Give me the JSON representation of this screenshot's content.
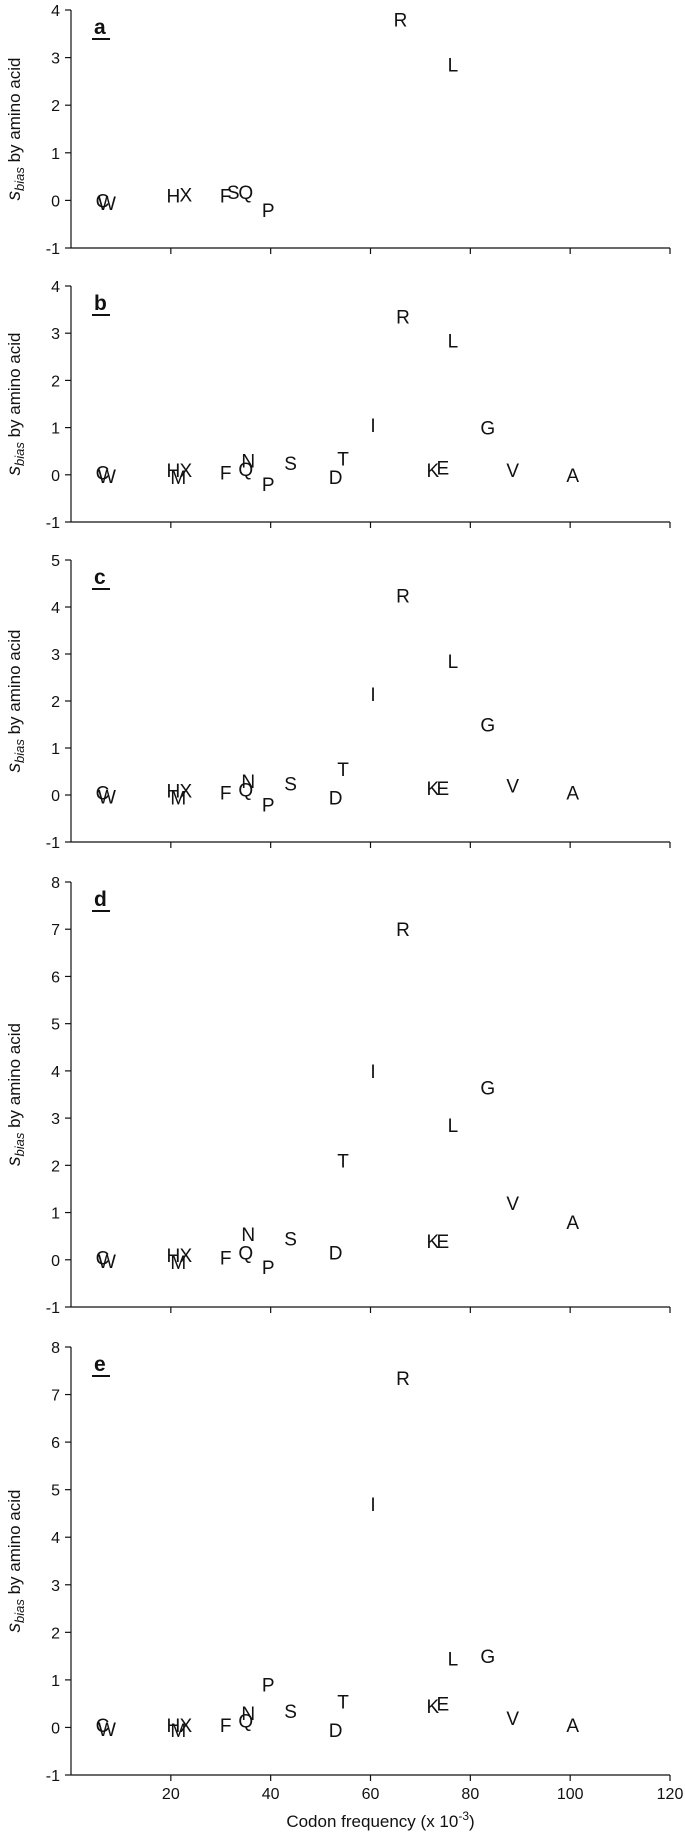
{
  "chart_data": [
    {
      "type": "scatter",
      "panel_label": "a",
      "ylabel_main": "s",
      "ylabel_sub": "bias",
      "ylabel_rest": " by amino acid",
      "xlim": [
        0,
        120
      ],
      "ylim": [
        -1,
        4
      ],
      "yticks": [
        -1,
        0,
        1,
        2,
        3,
        4
      ],
      "xticks": [
        20,
        40,
        60,
        80,
        100,
        120
      ],
      "points": [
        {
          "label": "R",
          "x": 66,
          "y": 3.8
        },
        {
          "label": "L",
          "x": 76.5,
          "y": 2.85
        },
        {
          "label": "C",
          "x": 6.3,
          "y": 0.0
        },
        {
          "label": "W",
          "x": 7.2,
          "y": -0.05
        },
        {
          "label": "H",
          "x": 20.5,
          "y": 0.1
        },
        {
          "label": "X",
          "x": 23,
          "y": 0.12
        },
        {
          "label": "F",
          "x": 31,
          "y": 0.1
        },
        {
          "label": "S",
          "x": 32.5,
          "y": 0.18
        },
        {
          "label": "Q",
          "x": 35,
          "y": 0.18
        },
        {
          "label": "P",
          "x": 39.5,
          "y": -0.2
        }
      ]
    },
    {
      "type": "scatter",
      "panel_label": "b",
      "ylabel_main": "s",
      "ylabel_sub": "bias",
      "ylabel_rest": " by amino acid",
      "xlim": [
        0,
        120
      ],
      "ylim": [
        -1,
        4
      ],
      "yticks": [
        -1,
        0,
        1,
        2,
        3,
        4
      ],
      "xticks": [
        20,
        40,
        60,
        80,
        100,
        120
      ],
      "points": [
        {
          "label": "R",
          "x": 66.5,
          "y": 3.35
        },
        {
          "label": "L",
          "x": 76.5,
          "y": 2.85
        },
        {
          "label": "I",
          "x": 60.5,
          "y": 1.05
        },
        {
          "label": "G",
          "x": 83.5,
          "y": 1.0
        },
        {
          "label": "C",
          "x": 6.3,
          "y": 0.05
        },
        {
          "label": "W",
          "x": 7.2,
          "y": -0.03
        },
        {
          "label": "H",
          "x": 20.5,
          "y": 0.1
        },
        {
          "label": "X",
          "x": 23,
          "y": 0.1
        },
        {
          "label": "M",
          "x": 21.5,
          "y": -0.05
        },
        {
          "label": "F",
          "x": 31,
          "y": 0.05
        },
        {
          "label": "Q",
          "x": 35,
          "y": 0.12
        },
        {
          "label": "N",
          "x": 35.5,
          "y": 0.3
        },
        {
          "label": "S",
          "x": 44,
          "y": 0.25
        },
        {
          "label": "P",
          "x": 39.5,
          "y": -0.2
        },
        {
          "label": "T",
          "x": 54.5,
          "y": 0.35
        },
        {
          "label": "D",
          "x": 53,
          "y": -0.05
        },
        {
          "label": "K",
          "x": 72.5,
          "y": 0.1
        },
        {
          "label": "E",
          "x": 74.5,
          "y": 0.15
        },
        {
          "label": "V",
          "x": 88.5,
          "y": 0.1
        },
        {
          "label": "A",
          "x": 100.5,
          "y": 0.0
        }
      ]
    },
    {
      "type": "scatter",
      "panel_label": "c",
      "ylabel_main": "s",
      "ylabel_sub": "bias",
      "ylabel_rest": " by amino acid",
      "xlim": [
        0,
        120
      ],
      "ylim": [
        -1,
        5
      ],
      "yticks": [
        -1,
        0,
        1,
        2,
        3,
        4,
        5
      ],
      "xticks": [
        20,
        40,
        60,
        80,
        100,
        120
      ],
      "points": [
        {
          "label": "R",
          "x": 66.5,
          "y": 4.25
        },
        {
          "label": "L",
          "x": 76.5,
          "y": 2.85
        },
        {
          "label": "I",
          "x": 60.5,
          "y": 2.15
        },
        {
          "label": "G",
          "x": 83.5,
          "y": 1.5
        },
        {
          "label": "C",
          "x": 6.3,
          "y": 0.05
        },
        {
          "label": "W",
          "x": 7.2,
          "y": -0.03
        },
        {
          "label": "H",
          "x": 20.5,
          "y": 0.1
        },
        {
          "label": "X",
          "x": 23,
          "y": 0.1
        },
        {
          "label": "M",
          "x": 21.5,
          "y": -0.05
        },
        {
          "label": "F",
          "x": 31,
          "y": 0.05
        },
        {
          "label": "Q",
          "x": 35,
          "y": 0.12
        },
        {
          "label": "N",
          "x": 35.5,
          "y": 0.3
        },
        {
          "label": "S",
          "x": 44,
          "y": 0.25
        },
        {
          "label": "P",
          "x": 39.5,
          "y": -0.2
        },
        {
          "label": "T",
          "x": 54.5,
          "y": 0.55
        },
        {
          "label": "D",
          "x": 53,
          "y": -0.05
        },
        {
          "label": "K",
          "x": 72.5,
          "y": 0.15
        },
        {
          "label": "E",
          "x": 74.5,
          "y": 0.15
        },
        {
          "label": "V",
          "x": 88.5,
          "y": 0.2
        },
        {
          "label": "A",
          "x": 100.5,
          "y": 0.05
        }
      ]
    },
    {
      "type": "scatter",
      "panel_label": "d",
      "ylabel_main": "s",
      "ylabel_sub": "bias",
      "ylabel_rest": " by amino acid",
      "xlim": [
        0,
        120
      ],
      "ylim": [
        -1,
        8
      ],
      "yticks": [
        -1,
        0,
        1,
        2,
        3,
        4,
        5,
        6,
        7,
        8
      ],
      "xticks": [
        20,
        40,
        60,
        80,
        100,
        120
      ],
      "points": [
        {
          "label": "R",
          "x": 66.5,
          "y": 7.0
        },
        {
          "label": "I",
          "x": 60.5,
          "y": 4.0
        },
        {
          "label": "G",
          "x": 83.5,
          "y": 3.65
        },
        {
          "label": "L",
          "x": 76.5,
          "y": 2.85
        },
        {
          "label": "T",
          "x": 54.5,
          "y": 2.1
        },
        {
          "label": "V",
          "x": 88.5,
          "y": 1.2
        },
        {
          "label": "A",
          "x": 100.5,
          "y": 0.8
        },
        {
          "label": "C",
          "x": 6.3,
          "y": 0.05
        },
        {
          "label": "W",
          "x": 7.2,
          "y": -0.03
        },
        {
          "label": "H",
          "x": 20.5,
          "y": 0.1
        },
        {
          "label": "X",
          "x": 23,
          "y": 0.1
        },
        {
          "label": "M",
          "x": 21.5,
          "y": -0.05
        },
        {
          "label": "F",
          "x": 31,
          "y": 0.05
        },
        {
          "label": "Q",
          "x": 35,
          "y": 0.15
        },
        {
          "label": "N",
          "x": 35.5,
          "y": 0.55
        },
        {
          "label": "S",
          "x": 44,
          "y": 0.45
        },
        {
          "label": "P",
          "x": 39.5,
          "y": -0.15
        },
        {
          "label": "D",
          "x": 53,
          "y": 0.15
        },
        {
          "label": "K",
          "x": 72.5,
          "y": 0.4
        },
        {
          "label": "E",
          "x": 74.5,
          "y": 0.4
        }
      ]
    },
    {
      "type": "scatter",
      "panel_label": "e",
      "ylabel_main": "s",
      "ylabel_sub": "bias",
      "ylabel_rest": " by amino acid",
      "xlabel_main": "Codon frequency (x 10",
      "xlabel_sup": "-3",
      "xlabel_end": ")",
      "xlim": [
        0,
        120
      ],
      "ylim": [
        -1,
        8
      ],
      "yticks": [
        -1,
        0,
        1,
        2,
        3,
        4,
        5,
        6,
        7,
        8
      ],
      "xticks": [
        20,
        40,
        60,
        80,
        100,
        120
      ],
      "points": [
        {
          "label": "R",
          "x": 66.5,
          "y": 7.35
        },
        {
          "label": "I",
          "x": 60.5,
          "y": 4.7
        },
        {
          "label": "L",
          "x": 76.5,
          "y": 1.45
        },
        {
          "label": "G",
          "x": 83.5,
          "y": 1.5
        },
        {
          "label": "P",
          "x": 39.5,
          "y": 0.9
        },
        {
          "label": "T",
          "x": 54.5,
          "y": 0.55
        },
        {
          "label": "C",
          "x": 6.3,
          "y": 0.05
        },
        {
          "label": "W",
          "x": 7.2,
          "y": -0.03
        },
        {
          "label": "H",
          "x": 20.5,
          "y": 0.05
        },
        {
          "label": "X",
          "x": 23,
          "y": 0.05
        },
        {
          "label": "M",
          "x": 21.5,
          "y": -0.05
        },
        {
          "label": "F",
          "x": 31,
          "y": 0.05
        },
        {
          "label": "Q",
          "x": 35,
          "y": 0.15
        },
        {
          "label": "N",
          "x": 35.5,
          "y": 0.3
        },
        {
          "label": "S",
          "x": 44,
          "y": 0.35
        },
        {
          "label": "D",
          "x": 53,
          "y": -0.05
        },
        {
          "label": "K",
          "x": 72.5,
          "y": 0.45
        },
        {
          "label": "E",
          "x": 74.5,
          "y": 0.5
        },
        {
          "label": "V",
          "x": 88.5,
          "y": 0.2
        },
        {
          "label": "A",
          "x": 100.5,
          "y": 0.05
        }
      ]
    }
  ]
}
